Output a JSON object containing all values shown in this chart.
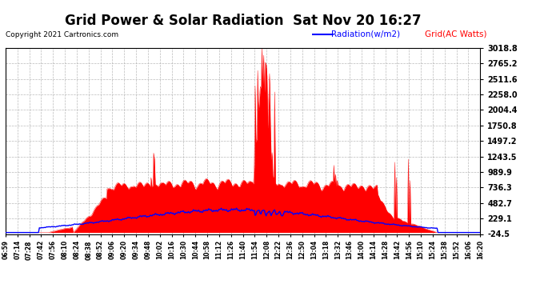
{
  "title": "Grid Power & Solar Radiation  Sat Nov 20 16:27",
  "copyright": "Copyright 2021 Cartronics.com",
  "legend_radiation": "Radiation(w/m2)",
  "legend_grid": "Grid(AC Watts)",
  "ylabel_right_ticks": [
    3018.8,
    2765.2,
    2511.6,
    2258.0,
    2004.4,
    1750.8,
    1497.2,
    1243.5,
    989.9,
    736.3,
    482.7,
    229.1,
    -24.5
  ],
  "ymin": -24.5,
  "ymax": 3018.8,
  "bg_color": "#ffffff",
  "plot_bg_color": "#ffffff",
  "grid_color": "#aaaaaa",
  "radiation_color": "#0000ff",
  "grid_fill_color": "#ff0000",
  "title_fontsize": 12,
  "xtick_labels": [
    "06:59",
    "07:14",
    "07:28",
    "07:42",
    "07:56",
    "08:10",
    "08:24",
    "08:38",
    "08:52",
    "09:06",
    "09:20",
    "09:34",
    "09:48",
    "10:02",
    "10:16",
    "10:30",
    "10:44",
    "10:58",
    "11:12",
    "11:26",
    "11:40",
    "11:54",
    "12:08",
    "12:22",
    "12:36",
    "12:50",
    "13:04",
    "13:18",
    "13:32",
    "13:46",
    "14:00",
    "14:14",
    "14:28",
    "14:42",
    "14:56",
    "15:10",
    "15:24",
    "15:38",
    "15:52",
    "16:06",
    "16:20"
  ]
}
